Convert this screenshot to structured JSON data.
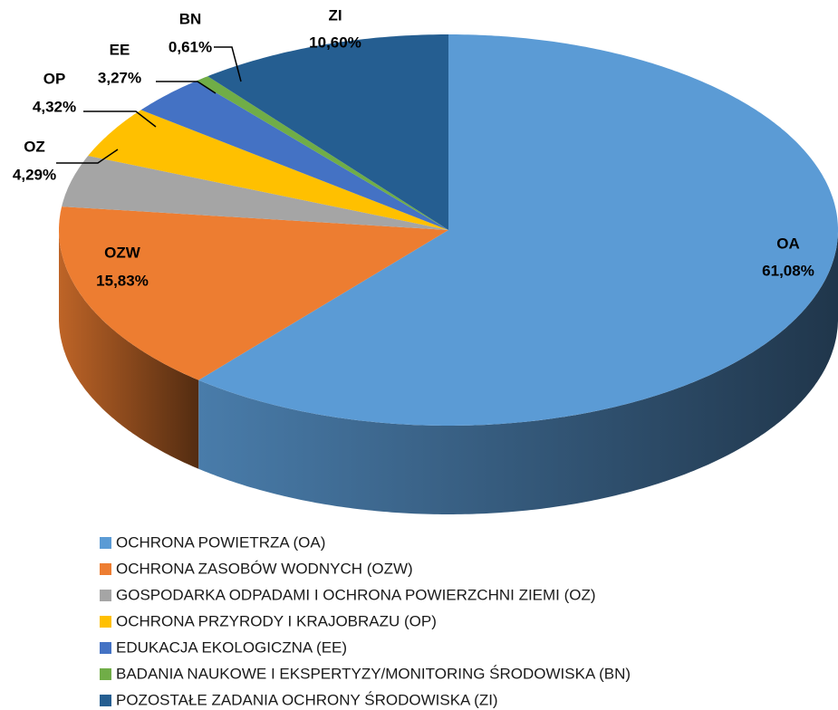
{
  "chart_data": {
    "type": "pie3d",
    "categories": [
      "OCHRONA POWIETRZA (OA)",
      "OCHRONA ZASOBÓW WODNYCH (OZW)",
      "GOSPODARKA ODPADAMI I OCHRONA POWIERZCHNI ZIEMI (OZ)",
      "OCHRONA PRZYRODY I KRAJOBRAZU (OP)",
      "EDUKACJA EKOLOGICZNA (EE)",
      "BADANIA NAUKOWE I EKSPERTYZY/MONITORING ŚRODOWISKA (BN)",
      "POZOSTAŁE ZADANIA OCHRONY ŚRODOWISKA (ZI)"
    ],
    "labels": [
      "OA",
      "OZW",
      "OZ",
      "OP",
      "EE",
      "BN",
      "ZI"
    ],
    "values": [
      61.08,
      15.83,
      4.29,
      4.32,
      3.27,
      0.61,
      10.6
    ],
    "value_labels": [
      "61,08%",
      "15,83%",
      "4,29%",
      "4,32%",
      "3,27%",
      "0,61%",
      "10,60%"
    ],
    "colors": [
      "#5b9bd5",
      "#ed7d31",
      "#a5a5a5",
      "#ffc000",
      "#4472c4",
      "#70ad47",
      "#255e91"
    ],
    "legend": "bottom"
  }
}
